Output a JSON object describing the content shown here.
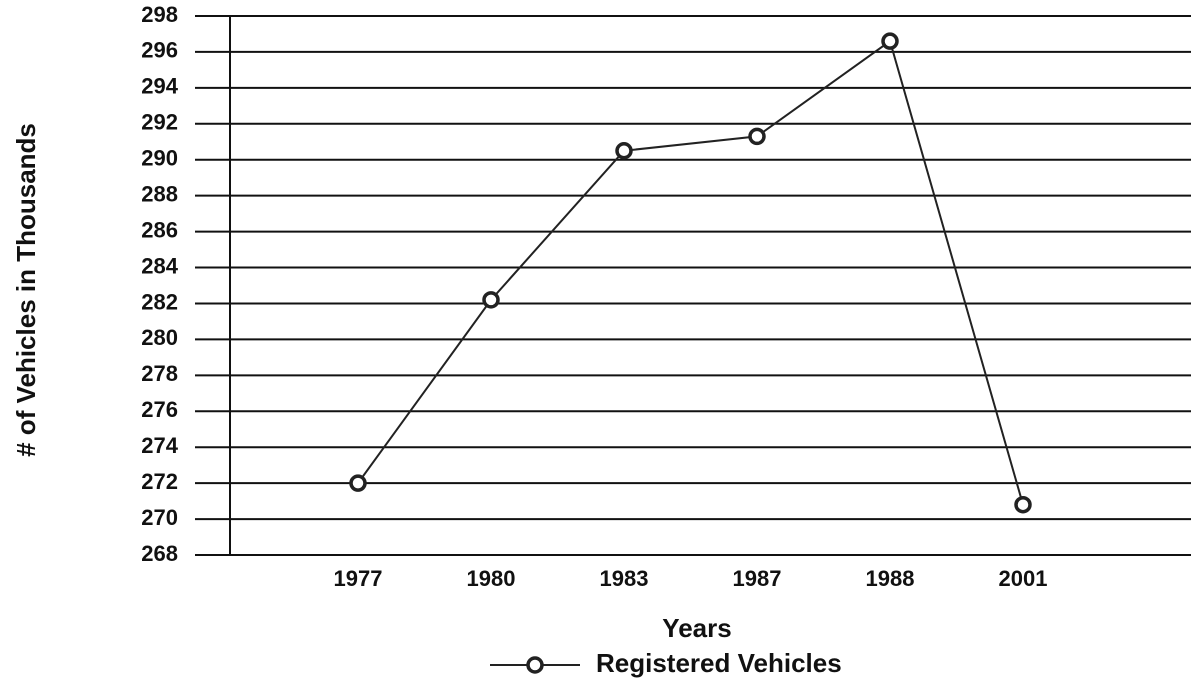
{
  "chart_data": {
    "type": "line",
    "x_label": "Years",
    "y_label": "# of Vehicles in Thousands",
    "categories": [
      "1977",
      "1980",
      "1983",
      "1987",
      "1988",
      "2001"
    ],
    "series": [
      {
        "name": "Registered Vehicles",
        "color": "#222222",
        "values": [
          272,
          282.2,
          290.5,
          291.3,
          296.6,
          270.8
        ]
      }
    ],
    "ylim": [
      268,
      298
    ],
    "yticks": [
      268,
      270,
      272,
      274,
      276,
      278,
      280,
      282,
      284,
      286,
      288,
      290,
      292,
      294,
      296,
      298
    ],
    "grid": true,
    "legend": "bottom"
  }
}
